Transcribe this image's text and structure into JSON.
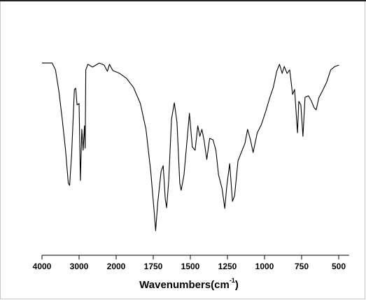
{
  "chart_data": {
    "type": "line",
    "xlabel": {
      "text": "Wavenumbers(cm",
      "sup": "-1",
      "close": ")"
    },
    "xlim": [
      4000,
      430
    ],
    "xticks": [
      4000,
      3000,
      2000,
      1750,
      1500,
      1250,
      1000,
      750,
      500
    ],
    "ylim": [
      0,
      100
    ],
    "grid": false,
    "series": [
      {
        "color": "#000000",
        "x": [
          4000,
          3727,
          3636,
          3545,
          3455,
          3364,
          3291,
          3255,
          3200,
          3127,
          3091,
          3055,
          3000,
          2964,
          2927,
          2891,
          2855,
          2836,
          2818,
          2764,
          2636,
          2455,
          2327,
          2236,
          2182,
          2091,
          1977,
          1930,
          1883,
          1837,
          1799,
          1767,
          1743,
          1734,
          1720,
          1697,
          1683,
          1669,
          1660,
          1646,
          1627,
          1608,
          1590,
          1571,
          1562,
          1543,
          1524,
          1506,
          1487,
          1468,
          1450,
          1436,
          1422,
          1408,
          1389,
          1370,
          1347,
          1328,
          1310,
          1286,
          1268,
          1254,
          1235,
          1216,
          1202,
          1179,
          1151,
          1132,
          1114,
          1095,
          1077,
          1049,
          1021,
          993,
          965,
          941,
          918,
          899,
          881,
          867,
          848,
          830,
          811,
          797,
          778,
          769,
          755,
          741,
          727,
          704,
          685,
          666,
          652,
          634,
          610,
          582,
          554,
          526,
          498
        ],
        "values": [
          96.2,
          96.2,
          92.5,
          81.1,
          66.0,
          49.1,
          31.3,
          30.2,
          47.2,
          81.9,
          82.6,
          73.6,
          74.3,
          32.8,
          60.4,
          49.1,
          62.3,
          50.2,
          92.5,
          95.5,
          94.0,
          96.2,
          95.1,
          91.7,
          95.5,
          92.1,
          90.6,
          87.9,
          83.0,
          74.3,
          60.4,
          37.7,
          15.1,
          5.7,
          20.8,
          37.7,
          40.8,
          22.6,
          18.1,
          32.1,
          66.0,
          74.7,
          64.2,
          31.3,
          27.5,
          35.8,
          52.8,
          69.1,
          50.9,
          49.1,
          62.3,
          56.6,
          60.4,
          54.7,
          44.2,
          55.5,
          54.7,
          49.1,
          35.8,
          28.3,
          17.7,
          30.2,
          41.9,
          21.5,
          24.5,
          43.4,
          49.1,
          52.8,
          60.4,
          54.7,
          47.9,
          58.5,
          63.0,
          69.8,
          77.4,
          83.0,
          91.7,
          95.5,
          90.6,
          94.3,
          90.6,
          92.5,
          79.2,
          81.9,
          58.5,
          75.5,
          73.6,
          56.6,
          77.7,
          78.5,
          75.8,
          72.1,
          70.9,
          77.4,
          81.1,
          85.7,
          92.5,
          94.3,
          95.1
        ]
      }
    ]
  }
}
